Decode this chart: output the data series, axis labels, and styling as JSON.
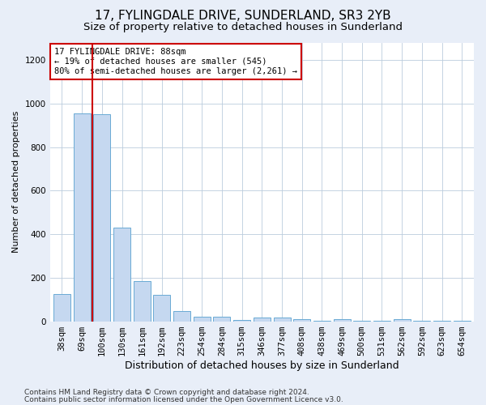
{
  "title": "17, FYLINGDALE DRIVE, SUNDERLAND, SR3 2YB",
  "subtitle": "Size of property relative to detached houses in Sunderland",
  "xlabel": "Distribution of detached houses by size in Sunderland",
  "ylabel": "Number of detached properties",
  "categories": [
    "38sqm",
    "69sqm",
    "100sqm",
    "130sqm",
    "161sqm",
    "192sqm",
    "223sqm",
    "254sqm",
    "284sqm",
    "315sqm",
    "346sqm",
    "377sqm",
    "408sqm",
    "438sqm",
    "469sqm",
    "500sqm",
    "531sqm",
    "562sqm",
    "592sqm",
    "623sqm",
    "654sqm"
  ],
  "values": [
    125,
    955,
    950,
    430,
    185,
    120,
    45,
    22,
    20,
    5,
    18,
    18,
    10,
    2,
    10,
    2,
    2,
    10,
    2,
    2,
    2
  ],
  "bar_color": "#c5d8f0",
  "bar_edge_color": "#6aaad4",
  "vline_x": 1.5,
  "vline_color": "#cc0000",
  "annotation_text": "17 FYLINGDALE DRIVE: 88sqm\n← 19% of detached houses are smaller (545)\n80% of semi-detached houses are larger (2,261) →",
  "annotation_box_color": "#ffffff",
  "annotation_box_edge": "#cc0000",
  "ylim": [
    0,
    1280
  ],
  "yticks": [
    0,
    200,
    400,
    600,
    800,
    1000,
    1200
  ],
  "footer1": "Contains HM Land Registry data © Crown copyright and database right 2024.",
  "footer2": "Contains public sector information licensed under the Open Government Licence v3.0.",
  "background_color": "#e8eef8",
  "plot_bg_color": "#ffffff",
  "title_fontsize": 11,
  "subtitle_fontsize": 9.5,
  "xlabel_fontsize": 9,
  "ylabel_fontsize": 8,
  "tick_fontsize": 7.5,
  "footer_fontsize": 6.5,
  "annotation_fontsize": 7.5
}
